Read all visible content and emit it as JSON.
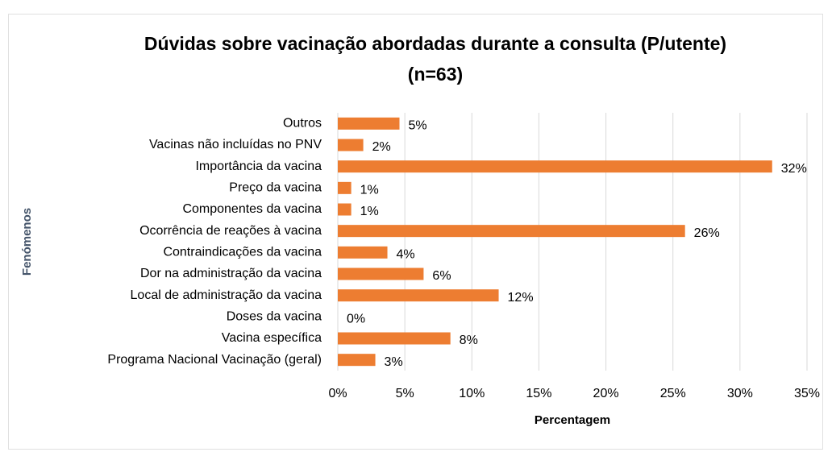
{
  "chart_data": {
    "type": "hbar",
    "title": "Dúvidas sobre vacinação abordadas durante a consulta (P/utente)",
    "subtitle": "(n=63)",
    "xlabel": "Percentagem",
    "ylabel": "Fenómenos",
    "categories": [
      "Outros",
      "Vacinas não incluídas no PNV",
      "Importância da vacina",
      "Preço da vacina",
      "Componentes da vacina",
      "Ocorrência de reações à vacina",
      "Contraindicações da vacina",
      "Dor na administração da vacina",
      "Local de administração da vacina",
      "Doses da vacina",
      "Vacina específica",
      "Programa Nacional Vacinação (geral)"
    ],
    "values": [
      4.6,
      1.9,
      32.4,
      1.0,
      1.0,
      25.9,
      3.7,
      6.4,
      12.0,
      0,
      8.4,
      2.8
    ],
    "value_labels": [
      "5%",
      "2%",
      "32%",
      "1%",
      "1%",
      "26%",
      "4%",
      "6%",
      "12%",
      "0%",
      "8%",
      "3%"
    ],
    "color": "#ed7d31",
    "xlim": [
      0,
      35
    ],
    "xticks": [
      {
        "value": 0,
        "label": "0%"
      },
      {
        "value": 5,
        "label": "5%"
      },
      {
        "value": 10,
        "label": "10%"
      },
      {
        "value": 15,
        "label": "15%"
      },
      {
        "value": 20,
        "label": "20%"
      },
      {
        "value": 25,
        "label": "25%"
      },
      {
        "value": 30,
        "label": "30%"
      },
      {
        "value": 35,
        "label": "35%"
      }
    ],
    "grid": true
  }
}
